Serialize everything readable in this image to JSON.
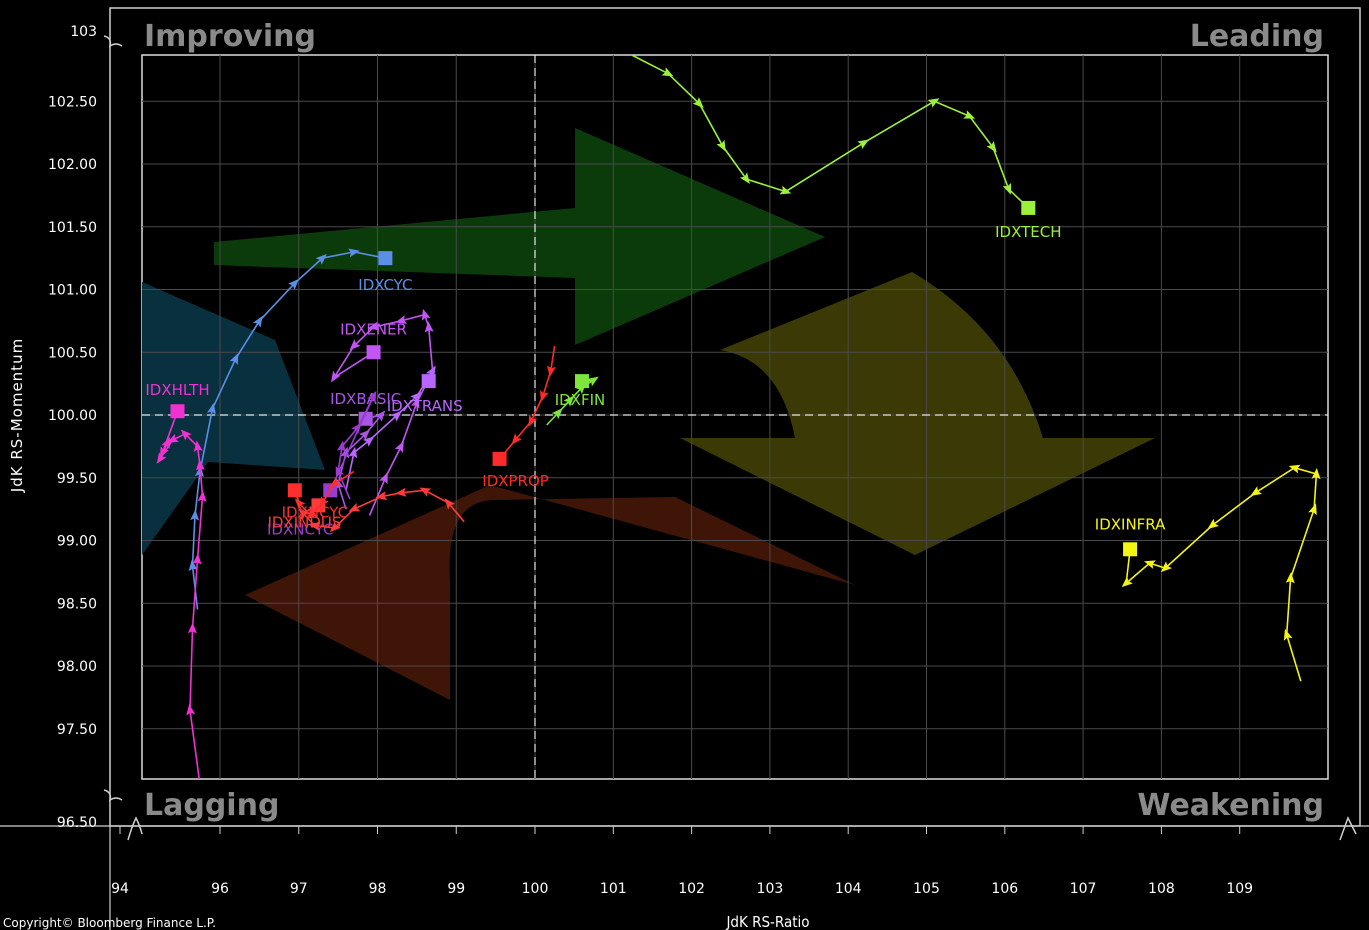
{
  "chart_data": {
    "type": "scatter",
    "subtype": "relative-rotation-graph",
    "xlabel": "JdK RS-Ratio",
    "ylabel": "JdK RS-Momentum",
    "xlim": [
      94,
      110
    ],
    "ylim": [
      96.5,
      103
    ],
    "x_ticks": [
      "94",
      "96",
      "97",
      "98",
      "99",
      "100",
      "101",
      "102",
      "103",
      "104",
      "105",
      "106",
      "107",
      "108",
      "109"
    ],
    "y_ticks": [
      "103",
      "102.50",
      "102.00",
      "101.50",
      "101.00",
      "100.50",
      "100.00",
      "99.50",
      "99.00",
      "98.50",
      "98.00",
      "97.50",
      "96.50"
    ],
    "quadrants": {
      "top_left": "Improving",
      "top_right": "Leading",
      "bottom_left": "Lagging",
      "bottom_right": "Weakening"
    },
    "grid": true,
    "copyright": "Copyright© Bloomberg Finance L.P.",
    "series": [
      {
        "name": "IDXTECH",
        "color": "#9cf23a",
        "points": [
          [
            101.2,
            102.88
          ],
          [
            101.7,
            102.72
          ],
          [
            102.1,
            102.48
          ],
          [
            102.4,
            102.14
          ],
          [
            102.7,
            101.88
          ],
          [
            103.2,
            101.78
          ],
          [
            104.2,
            102.17
          ],
          [
            105.1,
            102.5
          ],
          [
            105.55,
            102.38
          ],
          [
            105.85,
            102.13
          ],
          [
            106.05,
            101.8
          ],
          [
            106.3,
            101.65
          ]
        ]
      },
      {
        "name": "IDXINFRA",
        "color": "#f5f514",
        "points": [
          [
            109.78,
            97.88
          ],
          [
            109.6,
            98.25
          ],
          [
            109.65,
            98.7
          ],
          [
            109.95,
            99.25
          ],
          [
            109.98,
            99.53
          ],
          [
            109.7,
            99.58
          ],
          [
            109.2,
            99.38
          ],
          [
            108.65,
            99.12
          ],
          [
            108.05,
            98.78
          ],
          [
            107.85,
            98.82
          ],
          [
            107.55,
            98.66
          ],
          [
            107.6,
            98.93
          ]
        ]
      },
      {
        "name": "IDXCYC",
        "color": "#5b8fe6",
        "points": [
          [
            95.55,
            98.45
          ],
          [
            95.45,
            98.8
          ],
          [
            95.5,
            99.2
          ],
          [
            95.6,
            99.55
          ],
          [
            95.85,
            100.05
          ],
          [
            96.2,
            100.45
          ],
          [
            96.5,
            100.75
          ],
          [
            96.95,
            101.05
          ],
          [
            97.3,
            101.25
          ],
          [
            97.7,
            101.3
          ],
          [
            98.1,
            101.25
          ]
        ]
      },
      {
        "name": "IDXHLTH",
        "color": "#f032d2",
        "points": [
          [
            95.6,
            97.05
          ],
          [
            95.4,
            97.65
          ],
          [
            95.45,
            98.3
          ],
          [
            95.55,
            98.85
          ],
          [
            95.65,
            99.35
          ],
          [
            95.6,
            99.6
          ],
          [
            95.55,
            99.75
          ],
          [
            95.3,
            99.85
          ],
          [
            95.05,
            99.8
          ],
          [
            94.8,
            99.65
          ],
          [
            94.95,
            99.78
          ],
          [
            94.85,
            99.7
          ],
          [
            95.15,
            100.03
          ]
        ]
      },
      {
        "name": "IDXENER",
        "color": "#c455f5",
        "points": [
          [
            97.9,
            99.2
          ],
          [
            98.1,
            99.5
          ],
          [
            98.3,
            99.75
          ],
          [
            98.5,
            100.1
          ],
          [
            98.7,
            100.35
          ],
          [
            98.65,
            100.7
          ],
          [
            98.6,
            100.8
          ],
          [
            98.3,
            100.75
          ],
          [
            97.95,
            100.7
          ],
          [
            97.7,
            100.55
          ],
          [
            97.45,
            100.3
          ],
          [
            97.95,
            100.5
          ]
        ]
      },
      {
        "name": "IDXTRANS",
        "color": "#b866ff",
        "points": [
          [
            97.6,
            99.4
          ],
          [
            97.7,
            99.7
          ],
          [
            97.9,
            99.8
          ],
          [
            98.25,
            100.0
          ],
          [
            98.5,
            100.15
          ],
          [
            98.7,
            100.35
          ],
          [
            98.65,
            100.27
          ]
        ]
      },
      {
        "name": "IDXBASIC",
        "color": "#a855e6",
        "points": [
          [
            97.6,
            99.25
          ],
          [
            97.5,
            99.45
          ],
          [
            97.6,
            99.7
          ],
          [
            97.85,
            99.85
          ],
          [
            98.05,
            100.0
          ],
          [
            97.85,
            99.97
          ]
        ]
      },
      {
        "name": "IDXNCYC",
        "color": "#9a3dcf",
        "points": [
          [
            97.65,
            99.33
          ],
          [
            97.5,
            99.55
          ],
          [
            97.55,
            99.75
          ],
          [
            97.75,
            99.9
          ],
          [
            97.95,
            100.15
          ],
          [
            97.4,
            99.4
          ]
        ]
      },
      {
        "name": "IDXFIN",
        "color": "#7ee63a",
        "points": [
          [
            100.15,
            99.92
          ],
          [
            100.3,
            100.02
          ],
          [
            100.45,
            100.12
          ],
          [
            100.6,
            100.22
          ],
          [
            100.75,
            100.28
          ],
          [
            100.6,
            100.27
          ]
        ]
      },
      {
        "name": "IDXPROP",
        "color": "#ff2a2a",
        "points": [
          [
            100.25,
            100.55
          ],
          [
            100.2,
            100.35
          ],
          [
            100.1,
            100.15
          ],
          [
            99.95,
            99.95
          ],
          [
            99.75,
            99.8
          ],
          [
            99.55,
            99.65
          ]
        ]
      },
      {
        "name": "IDXINDUS",
        "color": "#ff3a3a",
        "points": [
          [
            99.1,
            99.15
          ],
          [
            98.9,
            99.3
          ],
          [
            98.6,
            99.4
          ],
          [
            98.3,
            99.38
          ],
          [
            98.05,
            99.35
          ],
          [
            97.7,
            99.25
          ],
          [
            97.45,
            99.1
          ],
          [
            97.2,
            99.12
          ],
          [
            97.05,
            99.22
          ],
          [
            97.25,
            99.28
          ]
        ]
      },
      {
        "name": "IDXNCYC",
        "color": "#ff2e2e",
        "points": [
          [
            97.7,
            99.55
          ],
          [
            97.45,
            99.45
          ],
          [
            97.3,
            99.3
          ],
          [
            97.15,
            99.2
          ],
          [
            97.0,
            99.3
          ],
          [
            96.95,
            99.4
          ]
        ]
      }
    ]
  }
}
